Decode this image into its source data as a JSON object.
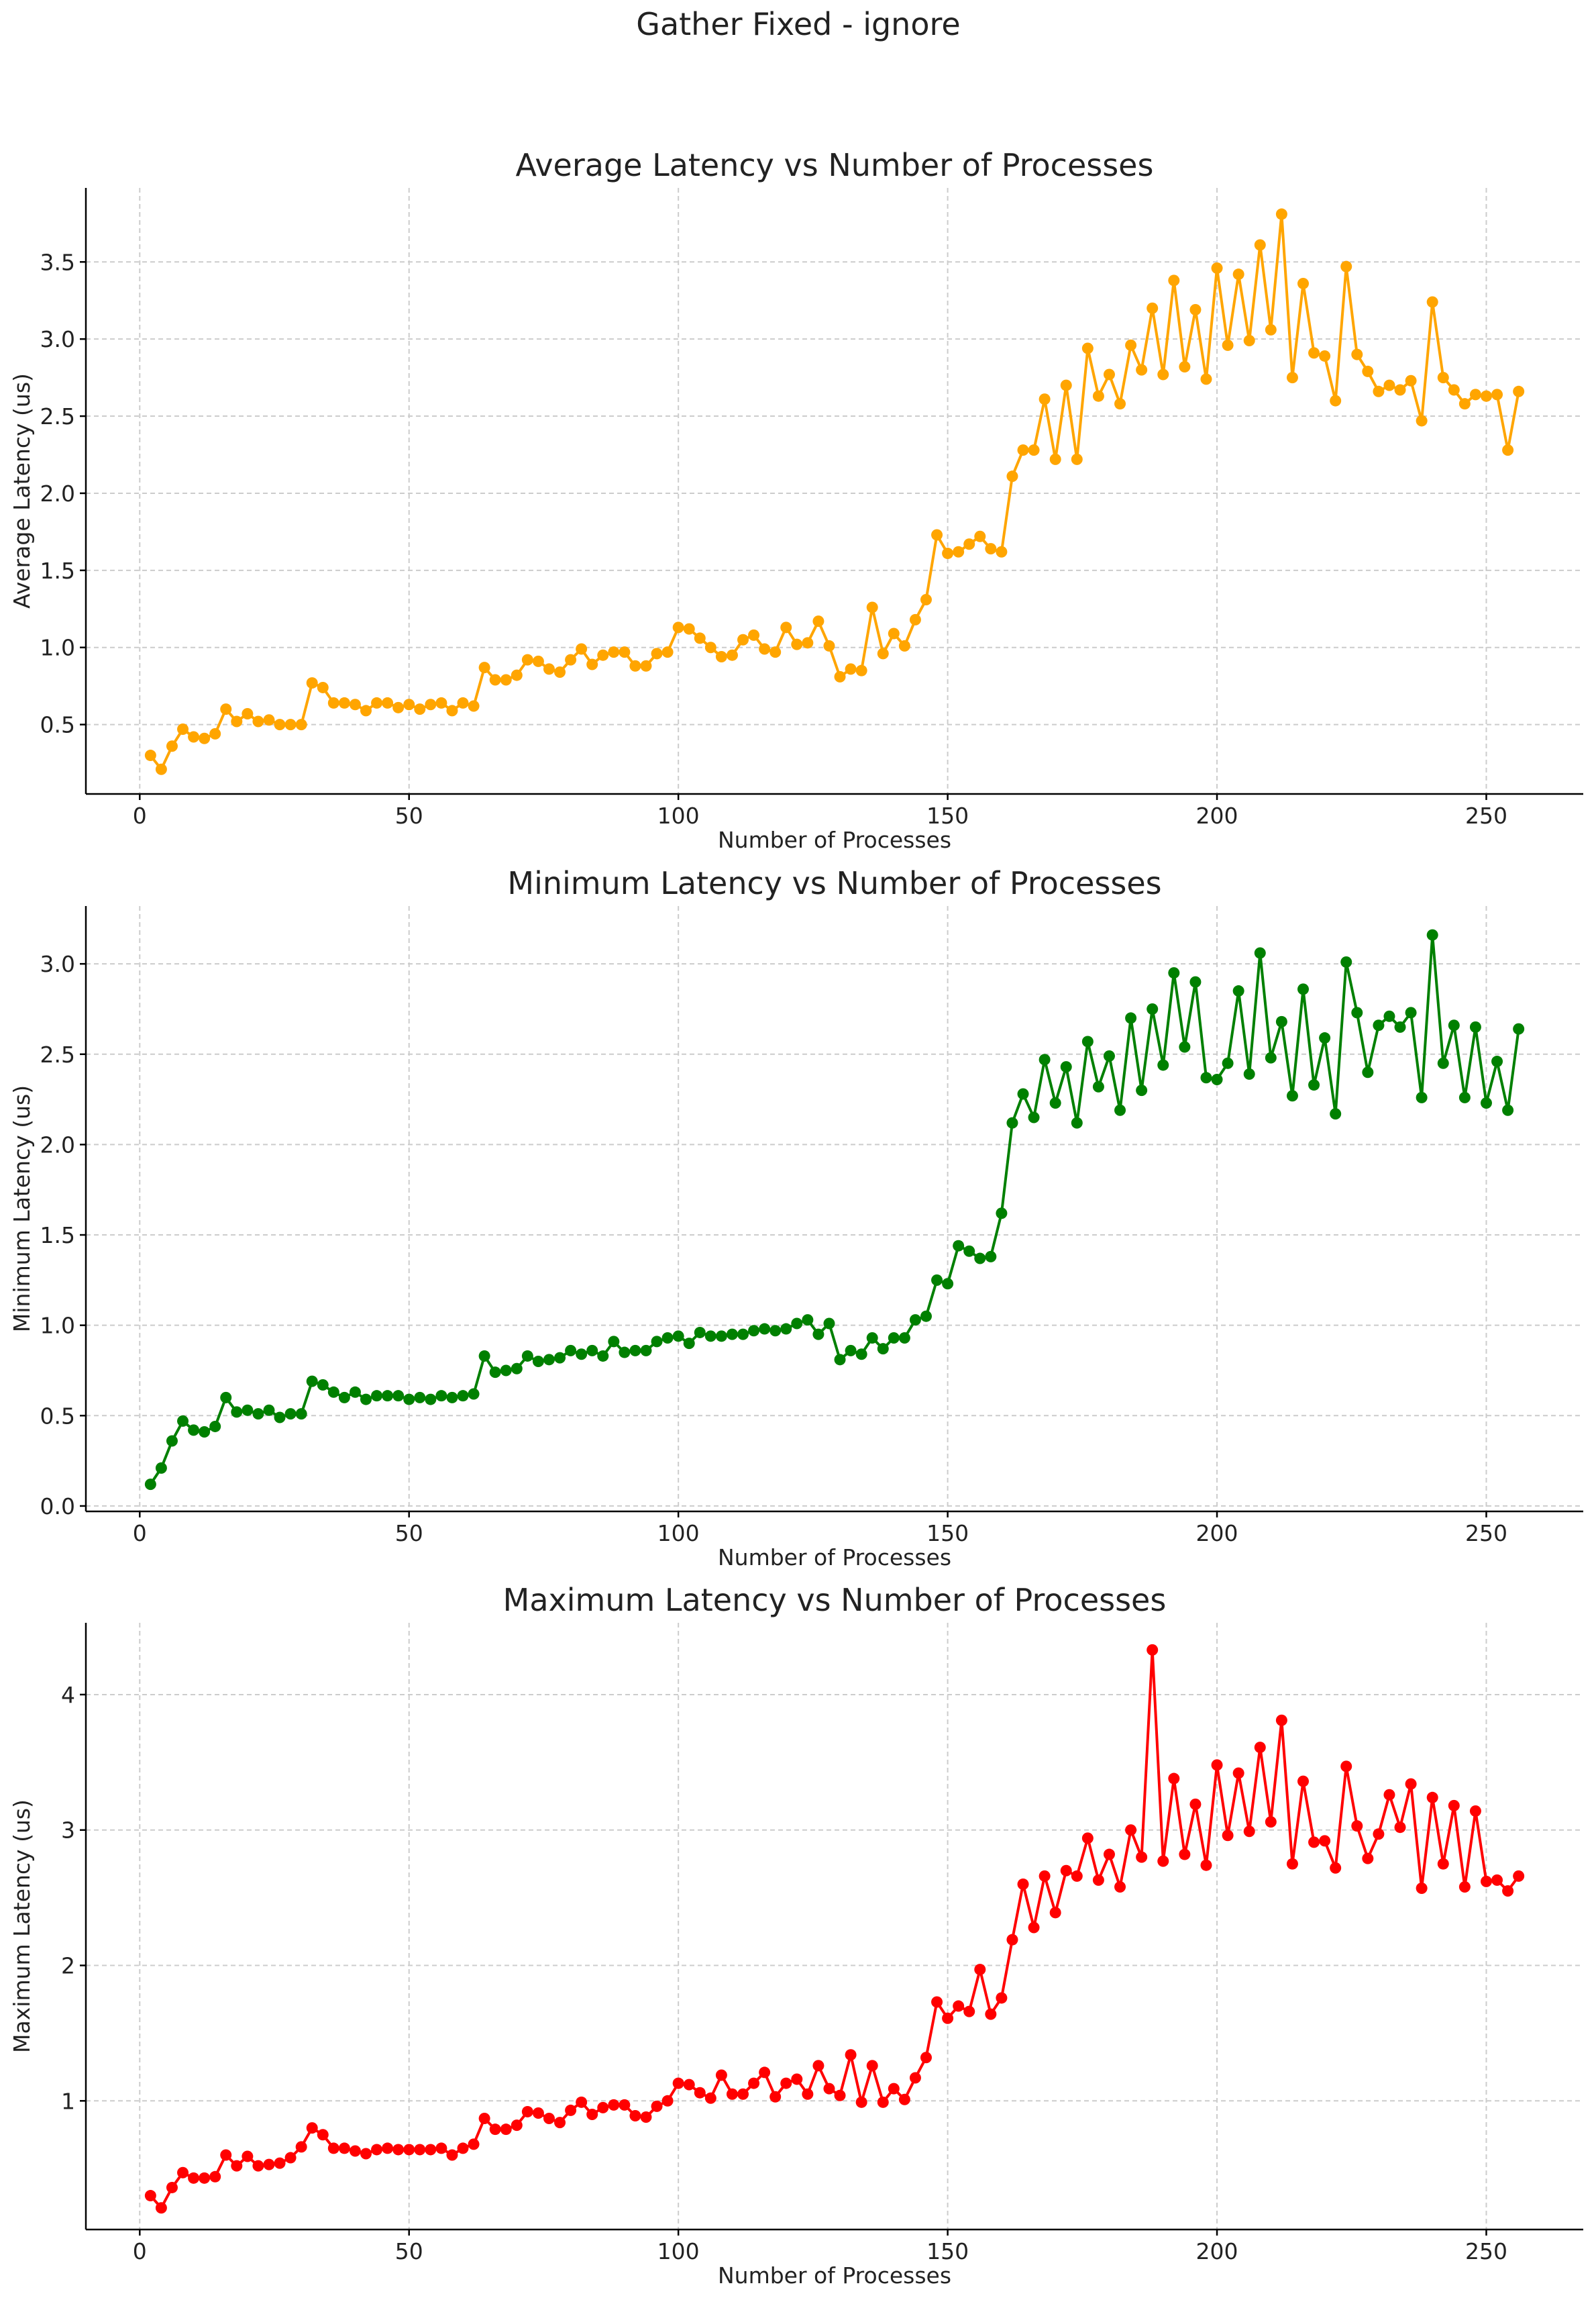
{
  "figure": {
    "title": "Gather Fixed - ignore"
  },
  "chart_data": [
    {
      "type": "line",
      "title": "Average Latency vs Number of Processes",
      "xlabel": "Number of Processes",
      "ylabel": "Average Latency (us)",
      "xlim": [
        -10,
        268
      ],
      "ylim": [
        0.05,
        3.98
      ],
      "xticks": [
        0,
        50,
        100,
        150,
        200,
        250
      ],
      "yticks": [
        0.5,
        1.0,
        1.5,
        2.0,
        2.5,
        3.0,
        3.5
      ],
      "ytick_labels": [
        "0.5",
        "1.0",
        "1.5",
        "2.0",
        "2.5",
        "3.0",
        "3.5"
      ],
      "grid": true,
      "color": "#FFA500",
      "x_start": 2,
      "x_step": 2,
      "values": [
        0.3,
        0.21,
        0.36,
        0.47,
        0.42,
        0.41,
        0.44,
        0.6,
        0.52,
        0.57,
        0.52,
        0.53,
        0.5,
        0.5,
        0.5,
        0.77,
        0.74,
        0.64,
        0.64,
        0.63,
        0.59,
        0.64,
        0.64,
        0.61,
        0.63,
        0.6,
        0.63,
        0.64,
        0.59,
        0.64,
        0.62,
        0.87,
        0.79,
        0.79,
        0.82,
        0.92,
        0.91,
        0.86,
        0.84,
        0.92,
        0.99,
        0.89,
        0.95,
        0.97,
        0.97,
        0.88,
        0.88,
        0.96,
        0.97,
        1.13,
        1.12,
        1.06,
        1.0,
        0.94,
        0.95,
        1.05,
        1.08,
        0.99,
        0.97,
        1.13,
        1.02,
        1.03,
        1.17,
        1.01,
        0.81,
        0.86,
        0.85,
        1.26,
        0.96,
        1.09,
        1.01,
        1.18,
        1.31,
        1.73,
        1.61,
        1.62,
        1.67,
        1.72,
        1.64,
        1.62,
        2.11,
        2.28,
        2.28,
        2.61,
        2.22,
        2.7,
        2.22,
        2.94,
        2.63,
        2.77,
        2.58,
        2.96,
        2.8,
        3.2,
        2.77,
        3.38,
        2.82,
        3.19,
        2.74,
        3.46,
        2.96,
        3.42,
        2.99,
        3.61,
        3.06,
        3.81,
        2.75,
        3.36,
        2.91,
        2.89,
        2.6,
        3.47,
        2.9,
        2.79,
        2.66,
        2.7,
        2.67,
        2.73,
        2.47,
        3.24,
        2.75,
        2.67,
        2.58,
        2.64,
        2.63,
        2.64,
        2.28,
        2.66
      ]
    },
    {
      "type": "line",
      "title": "Minimum Latency vs Number of Processes",
      "xlabel": "Number of Processes",
      "ylabel": "Minimum Latency (us)",
      "xlim": [
        -10,
        268
      ],
      "ylim": [
        -0.03,
        3.32
      ],
      "xticks": [
        0,
        50,
        100,
        150,
        200,
        250
      ],
      "yticks": [
        0.0,
        0.5,
        1.0,
        1.5,
        2.0,
        2.5,
        3.0
      ],
      "ytick_labels": [
        "0.0",
        "0.5",
        "1.0",
        "1.5",
        "2.0",
        "2.5",
        "3.0"
      ],
      "grid": true,
      "color": "#008000",
      "x_start": 2,
      "x_step": 2,
      "values": [
        0.12,
        0.21,
        0.36,
        0.47,
        0.42,
        0.41,
        0.44,
        0.6,
        0.52,
        0.53,
        0.51,
        0.53,
        0.49,
        0.51,
        0.51,
        0.69,
        0.67,
        0.63,
        0.6,
        0.63,
        0.59,
        0.61,
        0.61,
        0.61,
        0.59,
        0.6,
        0.59,
        0.61,
        0.6,
        0.61,
        0.62,
        0.83,
        0.74,
        0.75,
        0.76,
        0.83,
        0.8,
        0.81,
        0.82,
        0.86,
        0.84,
        0.86,
        0.83,
        0.91,
        0.85,
        0.86,
        0.86,
        0.91,
        0.93,
        0.94,
        0.9,
        0.96,
        0.94,
        0.94,
        0.95,
        0.95,
        0.97,
        0.98,
        0.97,
        0.98,
        1.01,
        1.03,
        0.95,
        1.01,
        0.81,
        0.86,
        0.84,
        0.93,
        0.87,
        0.93,
        0.93,
        1.03,
        1.05,
        1.25,
        1.23,
        1.44,
        1.41,
        1.37,
        1.38,
        1.62,
        2.12,
        2.28,
        2.15,
        2.47,
        2.23,
        2.43,
        2.12,
        2.57,
        2.32,
        2.49,
        2.19,
        2.7,
        2.3,
        2.75,
        2.44,
        2.95,
        2.54,
        2.9,
        2.37,
        2.36,
        2.45,
        2.85,
        2.39,
        3.06,
        2.48,
        2.68,
        2.27,
        2.86,
        2.33,
        2.59,
        2.17,
        3.01,
        2.73,
        2.4,
        2.66,
        2.71,
        2.65,
        2.73,
        2.26,
        3.16,
        2.45,
        2.66,
        2.26,
        2.65,
        2.23,
        2.46,
        2.19,
        2.64
      ]
    },
    {
      "type": "line",
      "title": "Maximum Latency vs Number of Processes",
      "xlabel": "Number of Processes",
      "ylabel": "Maximum Latency (us)",
      "xlim": [
        -10,
        268
      ],
      "ylim": [
        0.05,
        4.53
      ],
      "xticks": [
        0,
        50,
        100,
        150,
        200,
        250
      ],
      "yticks": [
        1,
        2,
        3,
        4
      ],
      "ytick_labels": [
        "1",
        "2",
        "3",
        "4"
      ],
      "grid": true,
      "color": "#FF0000",
      "x_start": 2,
      "x_step": 2,
      "values": [
        0.3,
        0.21,
        0.36,
        0.47,
        0.43,
        0.43,
        0.44,
        0.6,
        0.52,
        0.59,
        0.52,
        0.53,
        0.54,
        0.58,
        0.66,
        0.8,
        0.75,
        0.65,
        0.65,
        0.63,
        0.61,
        0.64,
        0.65,
        0.64,
        0.64,
        0.64,
        0.64,
        0.65,
        0.6,
        0.65,
        0.68,
        0.87,
        0.79,
        0.79,
        0.82,
        0.92,
        0.91,
        0.87,
        0.84,
        0.93,
        0.99,
        0.9,
        0.95,
        0.97,
        0.97,
        0.89,
        0.88,
        0.96,
        1.0,
        1.13,
        1.12,
        1.06,
        1.02,
        1.19,
        1.05,
        1.05,
        1.13,
        1.21,
        1.03,
        1.13,
        1.16,
        1.05,
        1.26,
        1.09,
        1.04,
        1.34,
        0.99,
        1.26,
        0.99,
        1.09,
        1.01,
        1.17,
        1.32,
        1.73,
        1.61,
        1.7,
        1.66,
        1.97,
        1.64,
        1.76,
        2.19,
        2.6,
        2.28,
        2.66,
        2.39,
        2.7,
        2.66,
        2.94,
        2.63,
        2.82,
        2.58,
        3.0,
        2.8,
        4.33,
        2.77,
        3.38,
        2.82,
        3.19,
        2.74,
        3.48,
        2.96,
        3.42,
        2.99,
        3.61,
        3.06,
        3.81,
        2.75,
        3.36,
        2.91,
        2.92,
        2.72,
        3.47,
        3.03,
        2.79,
        2.97,
        3.26,
        3.02,
        3.34,
        2.57,
        3.24,
        2.75,
        3.18,
        2.58,
        3.14,
        2.62,
        2.63,
        2.55,
        2.66
      ]
    }
  ]
}
